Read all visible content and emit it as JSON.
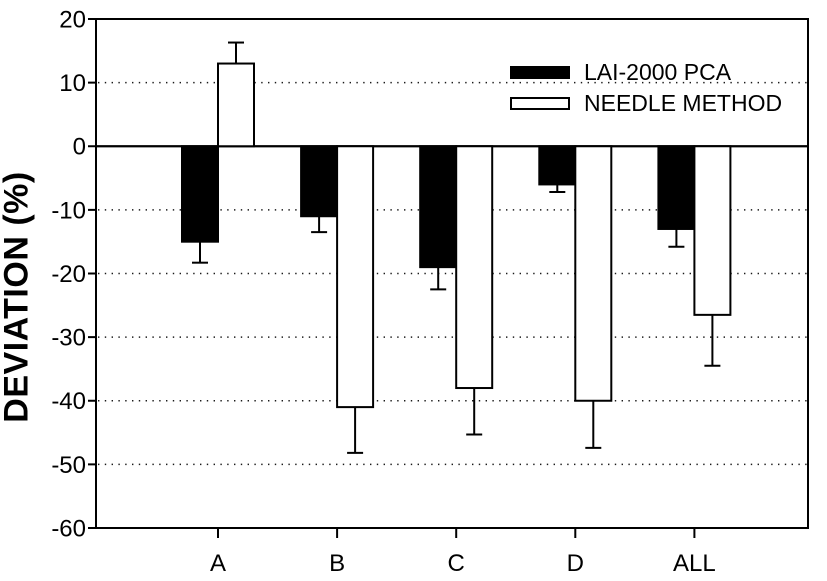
{
  "chart_data": {
    "type": "bar",
    "title": "",
    "xlabel": "",
    "ylabel": "DEVIATION (%)",
    "categories": [
      "A",
      "B",
      "C",
      "D",
      "ALL"
    ],
    "series": [
      {
        "name": "LAI-2000 PCA",
        "fill": "#000000",
        "stroke": "#000000",
        "values": [
          -15,
          -11,
          -19,
          -6,
          -13
        ],
        "errors": [
          3.3,
          2.5,
          3.5,
          1.2,
          2.8
        ]
      },
      {
        "name": "NEEDLE METHOD",
        "fill": "#ffffff",
        "stroke": "#000000",
        "values": [
          13,
          -41,
          -38,
          -40,
          -26.5
        ],
        "errors": [
          3.3,
          7.2,
          7.3,
          7.4,
          8
        ]
      }
    ],
    "ylim": [
      -60,
      20
    ],
    "yticks": [
      20,
      10,
      0,
      -10,
      -20,
      -30,
      -40,
      -50,
      -60
    ],
    "grid": "dotted horizontal lines at each tick, solid line at 0, boxed plot frame",
    "legend_position": "upper-right",
    "error_bars": "outward only, capped",
    "colors": {
      "axis": "#000000",
      "grid": "#1a1a1a",
      "background": "#ffffff"
    }
  }
}
